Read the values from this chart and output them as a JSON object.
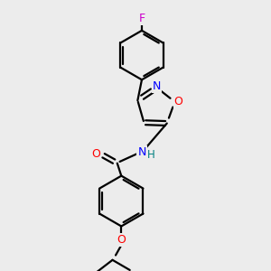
{
  "background_color": "#ececec",
  "bond_color": "#000000",
  "atom_colors": {
    "F": "#cc00cc",
    "O": "#ff0000",
    "N": "#0000ff",
    "H": "#008080",
    "C": "#000000"
  },
  "lw": 1.6,
  "fontsize": 8.5
}
